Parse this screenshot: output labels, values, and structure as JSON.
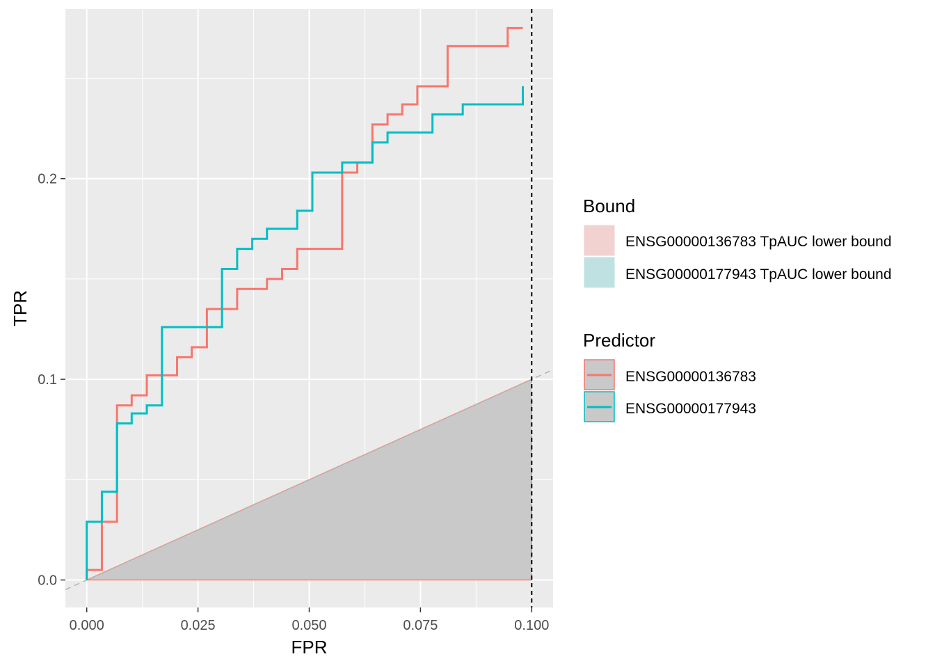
{
  "chart_data": {
    "type": "line",
    "xlabel": "FPR",
    "ylabel": "TPR",
    "xlim": [
      -0.0048,
      0.1048
    ],
    "ylim": [
      -0.0137,
      0.2845
    ],
    "x_ticks": [
      0.0,
      0.025,
      0.05,
      0.075,
      0.1
    ],
    "x_tick_labels": [
      "0.000",
      "0.025",
      "0.050",
      "0.075",
      "0.100"
    ],
    "y_ticks": [
      0.0,
      0.1,
      0.2
    ],
    "y_tick_labels": [
      "0.0",
      "0.1",
      "0.2"
    ],
    "grid": true,
    "background": "#ebebeb",
    "vline_x": 0.1,
    "diagonal": true,
    "lower_bound_region": [
      [
        0,
        0
      ],
      [
        0.1,
        0.1
      ],
      [
        0.1,
        0
      ]
    ],
    "series": [
      {
        "name": "ENSG00000136783",
        "color": "#F8766D",
        "points": [
          [
            0,
            0
          ],
          [
            0,
            0.005
          ],
          [
            0.0034,
            0.005
          ],
          [
            0.0034,
            0.029
          ],
          [
            0.0068,
            0.029
          ],
          [
            0.0068,
            0.087
          ],
          [
            0.0101,
            0.087
          ],
          [
            0.0101,
            0.092
          ],
          [
            0.0135,
            0.092
          ],
          [
            0.0135,
            0.102
          ],
          [
            0.0203,
            0.102
          ],
          [
            0.0203,
            0.111
          ],
          [
            0.0236,
            0.111
          ],
          [
            0.0236,
            0.116
          ],
          [
            0.027,
            0.116
          ],
          [
            0.027,
            0.135
          ],
          [
            0.0338,
            0.135
          ],
          [
            0.0338,
            0.145
          ],
          [
            0.0405,
            0.145
          ],
          [
            0.0405,
            0.15
          ],
          [
            0.0439,
            0.15
          ],
          [
            0.0439,
            0.155
          ],
          [
            0.0473,
            0.155
          ],
          [
            0.0473,
            0.165
          ],
          [
            0.0574,
            0.165
          ],
          [
            0.0574,
            0.203
          ],
          [
            0.0608,
            0.203
          ],
          [
            0.0608,
            0.208
          ],
          [
            0.0642,
            0.208
          ],
          [
            0.0642,
            0.227
          ],
          [
            0.0676,
            0.227
          ],
          [
            0.0676,
            0.232
          ],
          [
            0.0709,
            0.232
          ],
          [
            0.0709,
            0.237
          ],
          [
            0.0743,
            0.237
          ],
          [
            0.0743,
            0.246
          ],
          [
            0.0811,
            0.246
          ],
          [
            0.0811,
            0.266
          ],
          [
            0.0946,
            0.266
          ],
          [
            0.0946,
            0.275
          ],
          [
            0.098,
            0.275
          ]
        ]
      },
      {
        "name": "ENSG00000177943",
        "color": "#00BFC4",
        "points": [
          [
            0,
            0
          ],
          [
            0,
            0.029
          ],
          [
            0.0034,
            0.029
          ],
          [
            0.0034,
            0.044
          ],
          [
            0.0068,
            0.044
          ],
          [
            0.0068,
            0.078
          ],
          [
            0.0101,
            0.078
          ],
          [
            0.0101,
            0.083
          ],
          [
            0.0135,
            0.083
          ],
          [
            0.0135,
            0.087
          ],
          [
            0.0169,
            0.087
          ],
          [
            0.0169,
            0.126
          ],
          [
            0.0304,
            0.126
          ],
          [
            0.0304,
            0.155
          ],
          [
            0.0338,
            0.155
          ],
          [
            0.0338,
            0.165
          ],
          [
            0.0372,
            0.165
          ],
          [
            0.0372,
            0.17
          ],
          [
            0.0405,
            0.17
          ],
          [
            0.0405,
            0.175
          ],
          [
            0.0473,
            0.175
          ],
          [
            0.0473,
            0.184
          ],
          [
            0.0507,
            0.184
          ],
          [
            0.0507,
            0.203
          ],
          [
            0.0574,
            0.203
          ],
          [
            0.0574,
            0.208
          ],
          [
            0.0642,
            0.208
          ],
          [
            0.0642,
            0.218
          ],
          [
            0.0676,
            0.218
          ],
          [
            0.0676,
            0.223
          ],
          [
            0.0777,
            0.223
          ],
          [
            0.0777,
            0.232
          ],
          [
            0.0845,
            0.232
          ],
          [
            0.0845,
            0.237
          ],
          [
            0.098,
            0.237
          ],
          [
            0.098,
            0.246
          ]
        ]
      }
    ],
    "legends": [
      {
        "title": "Bound",
        "entries": [
          {
            "label": "ENSG00000136783 TpAUC lower bound",
            "fill": "#f1d2d1",
            "line": ""
          },
          {
            "label": "ENSG00000177943 TpAUC lower bound",
            "fill": "#bfe1e2",
            "line": ""
          }
        ]
      },
      {
        "title": "Predictor",
        "entries": [
          {
            "label": "ENSG00000136783",
            "fill": "#c8c9c8",
            "line": "#F8766D"
          },
          {
            "label": "ENSG00000177943",
            "fill": "#c8c9c8",
            "line": "#00BFC4"
          }
        ]
      }
    ],
    "legend_position": "right"
  }
}
